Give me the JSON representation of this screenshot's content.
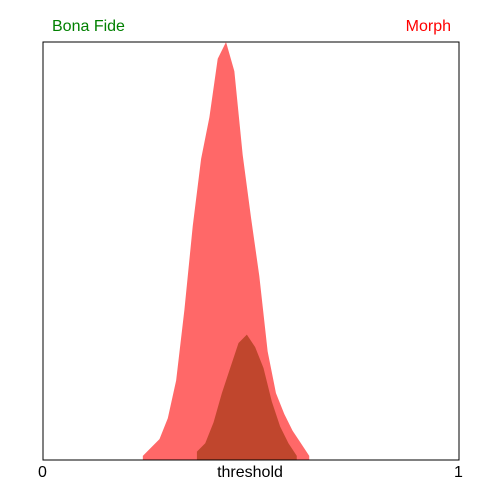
{
  "chart_data": {
    "type": "area",
    "xlabel": "threshold",
    "x_ticks": [
      "0",
      "1"
    ],
    "xlim": [
      0,
      1
    ],
    "legend_placement": "top",
    "series": [
      {
        "name": "Bona Fide",
        "color": "#008000",
        "fill_color": "#c0462d",
        "bin_start": 0.37,
        "bin_step": 0.02,
        "values": [
          0.02,
          0.04,
          0.09,
          0.16,
          0.22,
          0.28,
          0.3,
          0.27,
          0.22,
          0.14,
          0.08,
          0.04,
          0.01
        ]
      },
      {
        "name": "Morph",
        "color": "#ff0000",
        "fill_color": "#ff6868",
        "bin_start": 0.24,
        "bin_step": 0.02,
        "values": [
          0.01,
          0.03,
          0.05,
          0.1,
          0.19,
          0.36,
          0.56,
          0.72,
          0.82,
          0.96,
          1.0,
          0.93,
          0.73,
          0.58,
          0.44,
          0.26,
          0.16,
          0.11,
          0.07,
          0.04,
          0.01
        ]
      }
    ]
  }
}
